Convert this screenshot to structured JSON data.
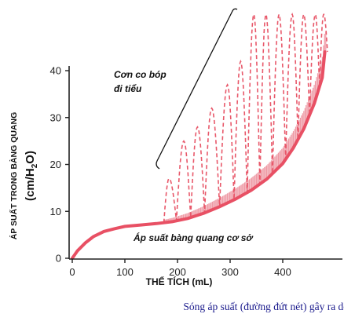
{
  "chart_data": {
    "type": "line",
    "xlabel": "THỂ TÍCH (mL)",
    "ylabel_line1": "ÁP SUẤT TRONG BÀNG QUANG",
    "ylabel_line2": "(cm/H",
    "ylabel_sub": "2",
    "ylabel_line3": "O)",
    "xlim": [
      0,
      520
    ],
    "ylim": [
      0,
      48
    ],
    "x_ticks": [
      0,
      100,
      200,
      300,
      400
    ],
    "y_ticks": [
      0,
      10,
      20,
      30,
      40
    ],
    "grid": false,
    "series": [
      {
        "name": "Áp suất bàng quang cơ sở",
        "style": "solid",
        "color": "#e85064",
        "x": [
          0,
          10,
          25,
          40,
          60,
          80,
          100,
          130,
          160,
          190,
          220,
          250,
          280,
          310,
          340,
          370,
          400,
          420,
          440,
          460,
          475,
          480
        ],
        "y": [
          0,
          1.6,
          3.3,
          4.6,
          5.7,
          6.3,
          6.8,
          7.1,
          7.4,
          7.8,
          8.5,
          9.6,
          11.0,
          12.6,
          14.5,
          16.9,
          20.2,
          23.5,
          27.6,
          33.0,
          38.5,
          44.0
        ]
      },
      {
        "name": "Sóng áp suất",
        "style": "dashed",
        "color": "#e8586a",
        "peaks": [
          {
            "x": 184,
            "y": 17
          },
          {
            "x": 212,
            "y": 25
          },
          {
            "x": 238,
            "y": 28
          },
          {
            "x": 265,
            "y": 32
          },
          {
            "x": 295,
            "y": 37
          },
          {
            "x": 320,
            "y": 42
          },
          {
            "x": 345,
            "y": 52
          },
          {
            "x": 368,
            "y": 52
          },
          {
            "x": 393,
            "y": 52
          },
          {
            "x": 418,
            "y": 52
          },
          {
            "x": 440,
            "y": 52
          },
          {
            "x": 462,
            "y": 52
          },
          {
            "x": 478,
            "y": 52
          }
        ]
      }
    ],
    "annotations": {
      "contractions_line1": "Cơn co bóp",
      "contractions_line2": "đi tiểu",
      "baseline_label": "Áp suất bàng quang cơ sở"
    }
  },
  "caption": "Sóng áp suất (đường đứt nét) gây ra do phản xạ đi tiểu.",
  "colors": {
    "curve": "#e85064",
    "wave": "#e8586a",
    "shade": "#ee9aa5",
    "caption_text": "#1a1a8c"
  }
}
